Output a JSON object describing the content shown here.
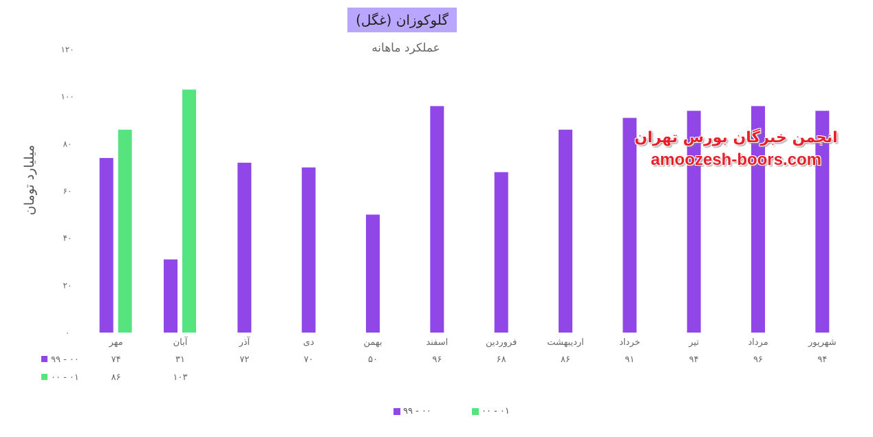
{
  "title": "گلوکوزان (غگل)",
  "subtitle": "عملکرد ماهانه",
  "watermark": {
    "line1": "انجمن خبرگان بورس تهران",
    "line2": "amoozesh-boors.com"
  },
  "colors": {
    "series1": "#9146e8",
    "series2": "#56e47e",
    "title_bg": "#b9a6ff"
  },
  "chart_data": {
    "type": "bar",
    "ylabel": "میلیارد تومان",
    "ylim": [
      0,
      120
    ],
    "yticks": [
      "۰",
      "۲۰",
      "۴۰",
      "۶۰",
      "۸۰",
      "۱۰۰",
      "۱۲۰"
    ],
    "yticks_values": [
      0,
      20,
      40,
      60,
      80,
      100,
      120
    ],
    "categories": [
      "مهر",
      "آبان",
      "آذر",
      "دی",
      "بهمن",
      "اسفند",
      "فروردین",
      "اردیبهشت",
      "خرداد",
      "تیر",
      "مرداد",
      "شهریور"
    ],
    "series": [
      {
        "name": "۹۹ - ۰۰",
        "values": [
          74,
          31,
          72,
          70,
          50,
          96,
          68,
          86,
          91,
          94,
          96,
          94
        ],
        "labels": [
          "۷۴",
          "۳۱",
          "۷۲",
          "۷۰",
          "۵۰",
          "۹۶",
          "۶۸",
          "۸۶",
          "۹۱",
          "۹۴",
          "۹۶",
          "۹۴"
        ]
      },
      {
        "name": "۰۰ - ۰۱",
        "values": [
          86,
          103,
          null,
          null,
          null,
          null,
          null,
          null,
          null,
          null,
          null,
          null
        ],
        "labels": [
          "۸۶",
          "۱۰۳",
          "",
          "",
          "",
          "",
          "",
          "",
          "",
          "",
          "",
          ""
        ]
      }
    ],
    "legend_placement": "bottom",
    "grid": false
  }
}
